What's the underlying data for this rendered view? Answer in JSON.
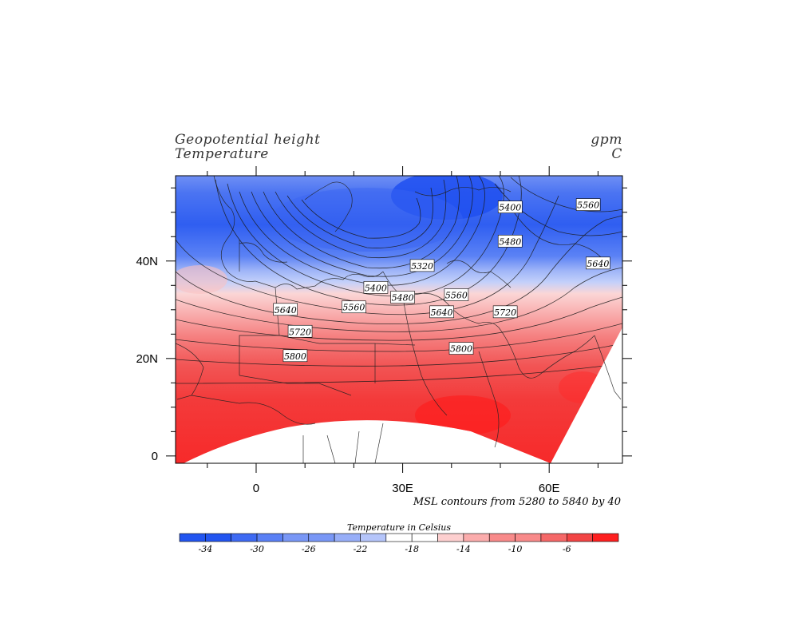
{
  "titles": {
    "left_line1": "Geopotential height",
    "left_line2": "Temperature",
    "right_line1": "gpm",
    "right_line2": "C"
  },
  "axes": {
    "x_ticks": [
      {
        "lon": 0,
        "label": "0"
      },
      {
        "lon": 30,
        "label": "30E"
      },
      {
        "lon": 60,
        "label": "60E"
      }
    ],
    "y_ticks": [
      {
        "lat": 0,
        "label": "0"
      },
      {
        "lat": 20,
        "label": "20N"
      },
      {
        "lat": 40,
        "label": "40N"
      }
    ],
    "lon_range": [
      -16.5,
      75
    ],
    "lat_range": [
      -1.5,
      57.5
    ]
  },
  "contour_note": "MSL contours from  5280  to  5840  by 40",
  "contour_labels": [
    {
      "text": "5400",
      "lon": 52,
      "lat": 51
    },
    {
      "text": "5560",
      "lon": 68,
      "lat": 51.5
    },
    {
      "text": "5480",
      "lon": 52,
      "lat": 44
    },
    {
      "text": "5640",
      "lon": 70,
      "lat": 39.5
    },
    {
      "text": "5320",
      "lon": 34,
      "lat": 39
    },
    {
      "text": "5400",
      "lon": 24.5,
      "lat": 34.5
    },
    {
      "text": "5480",
      "lon": 30,
      "lat": 32.5
    },
    {
      "text": "5560",
      "lon": 20,
      "lat": 30.5
    },
    {
      "text": "5560",
      "lon": 41,
      "lat": 33
    },
    {
      "text": "5640",
      "lon": 6,
      "lat": 30
    },
    {
      "text": "5640",
      "lon": 38,
      "lat": 29.5
    },
    {
      "text": "5720",
      "lon": 51,
      "lat": 29.5
    },
    {
      "text": "5720",
      "lon": 9,
      "lat": 25.5
    },
    {
      "text": "5800",
      "lon": 8,
      "lat": 20.5
    },
    {
      "text": "5800",
      "lon": 42,
      "lat": 22
    }
  ],
  "colorbar": {
    "title": "Temperature in Celsius",
    "colors": [
      "#2255f0",
      "#3e6af3",
      "#5a80f5",
      "#7997f6",
      "#97aef8",
      "#b5c5fa",
      "#ffffff",
      "#fdcfcf",
      "#fbacac",
      "#f88a8a",
      "#f56868",
      "#f24545",
      "#fe1f1f"
    ],
    "tick_labels": [
      "-34",
      "-30",
      "-26",
      "-22",
      "-18",
      "-14",
      "-10",
      "-6"
    ],
    "tick_boundary_index": [
      1,
      3,
      5,
      7,
      9,
      11,
      13,
      15
    ]
  }
}
